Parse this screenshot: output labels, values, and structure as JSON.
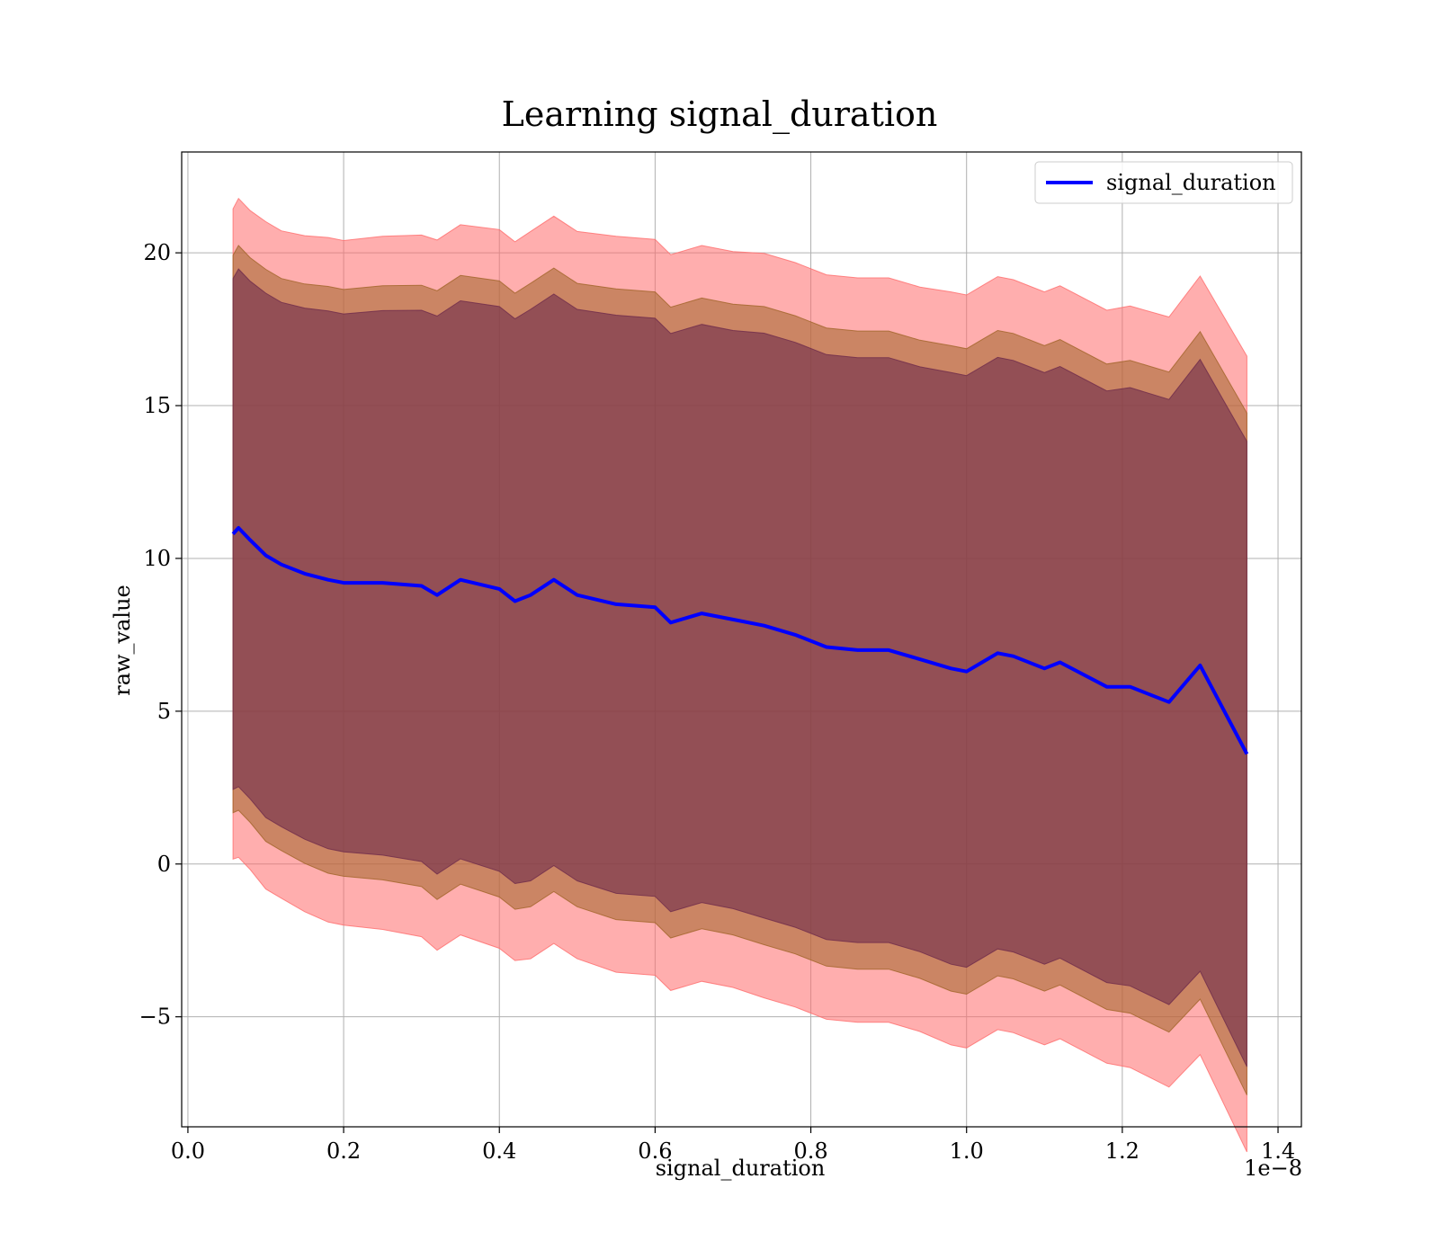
{
  "chart_data": {
    "type": "line",
    "title": "Learning signal_duration",
    "xlabel": "signal_duration",
    "ylabel": "raw_value",
    "x_offset_label": "1e−8",
    "xlim": [
      -0.008,
      1.43
    ],
    "ylim": [
      -8.6,
      23.3
    ],
    "xticks": [
      0.0,
      0.2,
      0.4,
      0.6,
      0.8,
      1.0,
      1.2,
      1.4
    ],
    "xtick_labels": [
      "0.0",
      "0.2",
      "0.4",
      "0.6",
      "0.8",
      "1.0",
      "1.2",
      "1.4"
    ],
    "yticks": [
      -5,
      0,
      5,
      10,
      15,
      20
    ],
    "ytick_labels": [
      "−5",
      "0",
      "5",
      "10",
      "15",
      "20"
    ],
    "grid": true,
    "legend_position": "top-right",
    "colors": {
      "line": "#0000ff",
      "band_outer": "#ff6b6b",
      "band_middle": "#a06428",
      "band_inner": "#6e2b4b"
    },
    "series": [
      {
        "name": "signal_duration",
        "x": [
          0.058,
          0.065,
          0.08,
          0.1,
          0.12,
          0.15,
          0.18,
          0.2,
          0.25,
          0.3,
          0.32,
          0.35,
          0.4,
          0.42,
          0.44,
          0.47,
          0.5,
          0.55,
          0.6,
          0.62,
          0.66,
          0.7,
          0.74,
          0.78,
          0.82,
          0.86,
          0.9,
          0.94,
          0.98,
          1.0,
          1.02,
          1.04,
          1.06,
          1.1,
          1.12,
          1.18,
          1.21,
          1.26,
          1.3,
          1.36
        ],
        "y": [
          10.8,
          11.0,
          10.6,
          10.1,
          9.8,
          9.5,
          9.3,
          9.2,
          9.2,
          9.1,
          8.8,
          9.3,
          9.0,
          8.6,
          8.8,
          9.3,
          8.8,
          8.5,
          8.4,
          7.9,
          8.2,
          8.0,
          7.8,
          7.5,
          7.1,
          7.0,
          7.0,
          6.7,
          6.4,
          6.3,
          6.6,
          6.9,
          6.8,
          6.4,
          6.6,
          5.8,
          5.8,
          5.3,
          6.5,
          3.6
        ],
        "std": [
          7.6,
          7.7,
          7.7,
          7.8,
          7.8,
          7.9,
          8.0,
          8.0,
          8.1,
          8.2,
          8.3,
          8.3,
          8.4,
          8.4,
          8.5,
          8.5,
          8.5,
          8.6,
          8.6,
          8.6,
          8.6,
          8.6,
          8.7,
          8.7,
          8.7,
          8.7,
          8.7,
          8.7,
          8.8,
          8.8,
          8.8,
          8.8,
          8.8,
          8.8,
          8.8,
          8.8,
          8.9,
          9.0,
          9.1,
          9.3
        ]
      }
    ],
    "bands": [
      {
        "multiplier": 1.4,
        "color": "#ff6b6b",
        "opacity": 0.55
      },
      {
        "multiplier": 1.2,
        "color": "#a06428",
        "opacity": 0.55
      },
      {
        "multiplier": 1.1,
        "color": "#6e2b4b",
        "opacity": 0.6
      }
    ]
  }
}
